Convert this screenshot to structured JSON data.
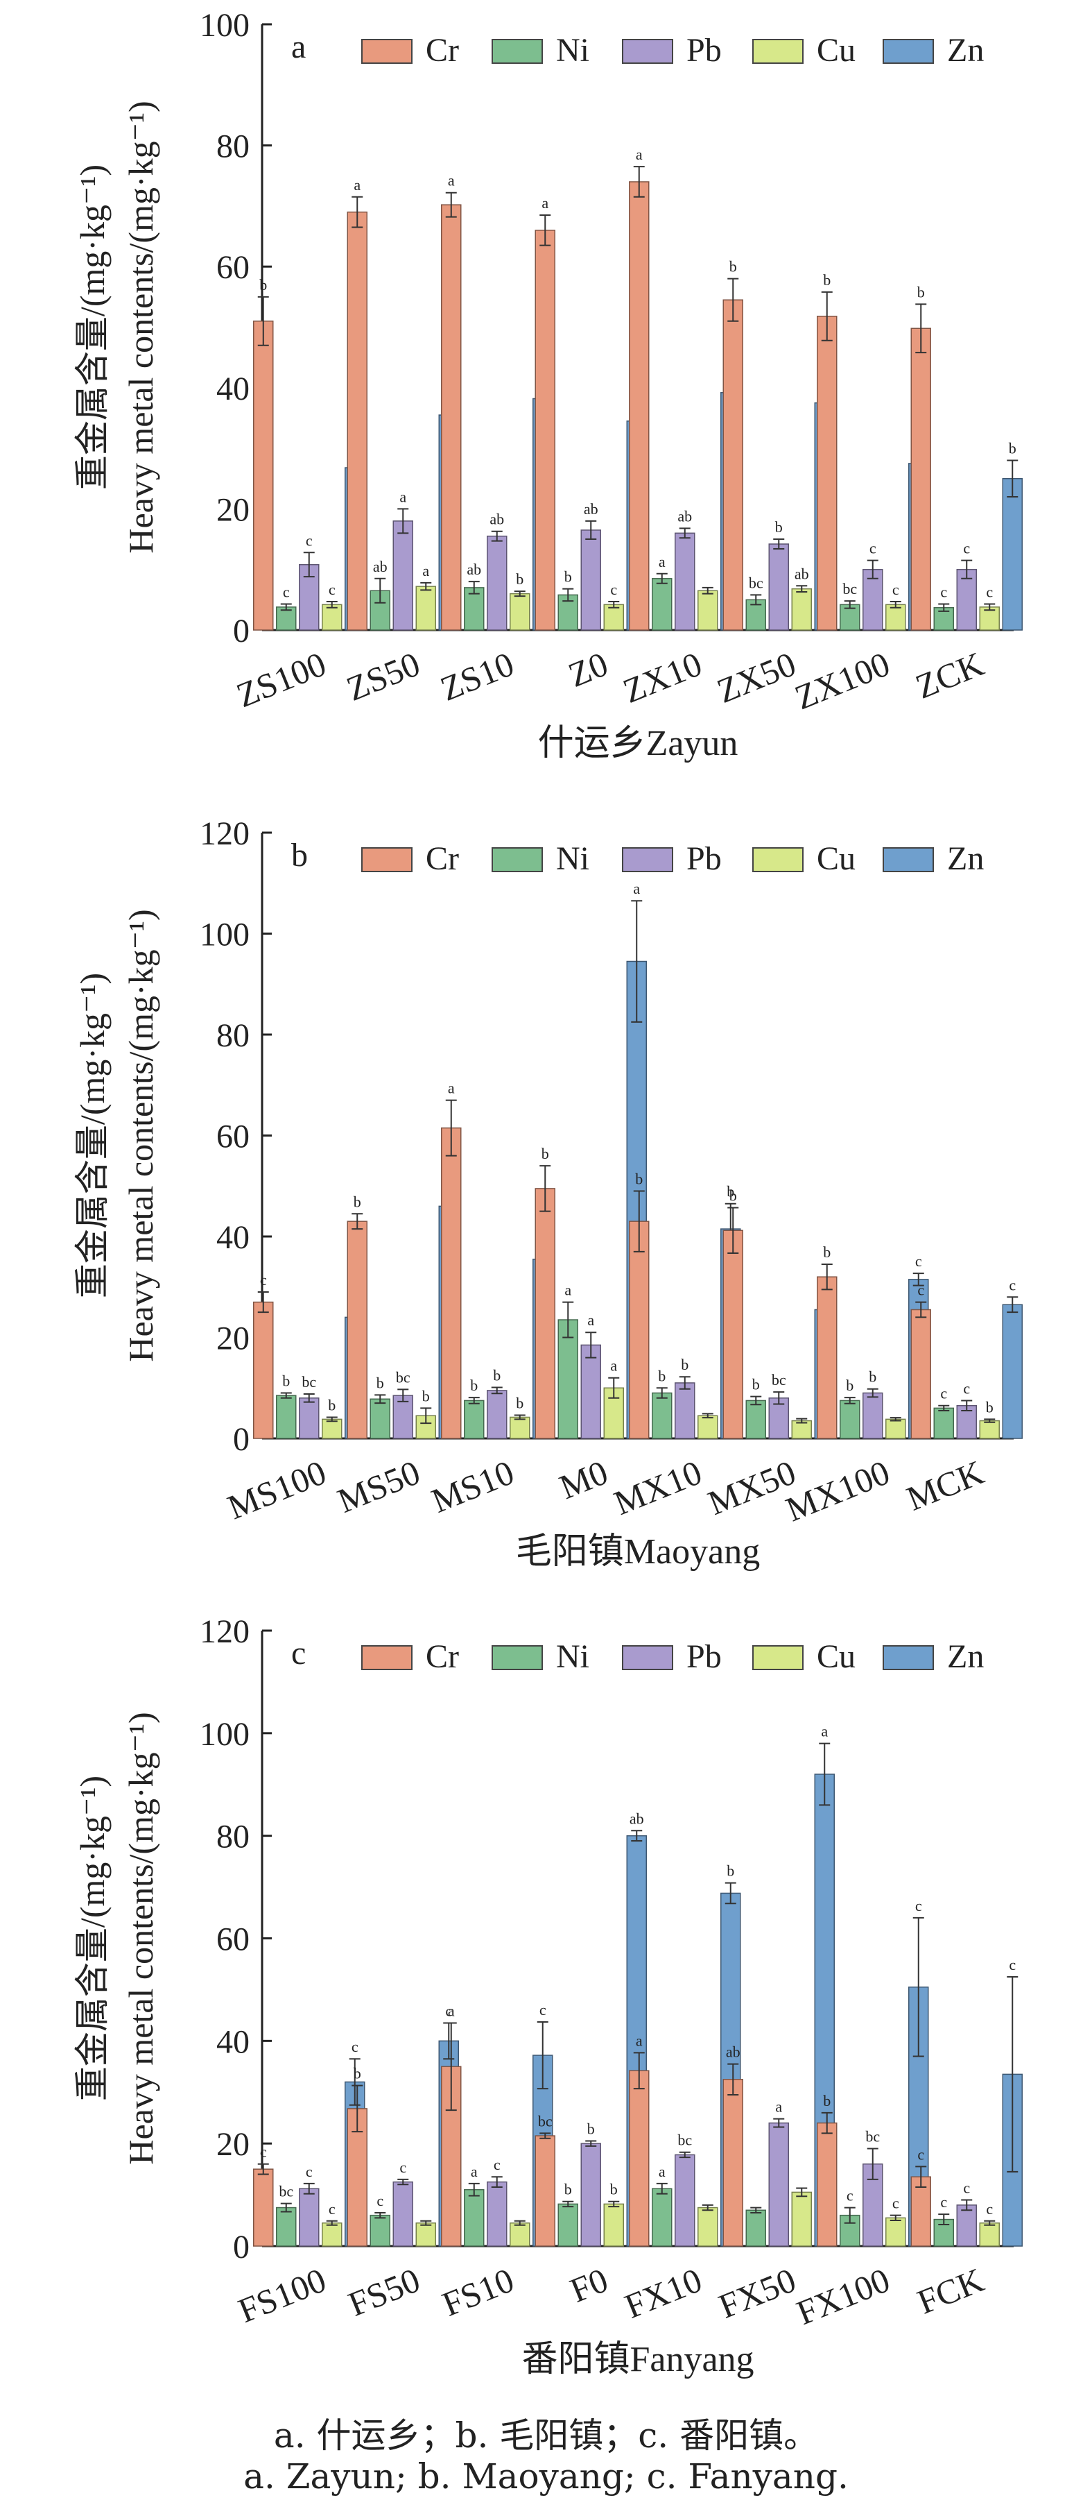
{
  "chart_data": [
    {
      "type": "bar",
      "panel_label": "a",
      "xlabel": "什运乡Zayun",
      "ylabel_cn": "重金属含量/(mg·kg⁻¹)",
      "ylabel_en": "Heavy metal contents/(mg·kg⁻¹)",
      "ylim": [
        0,
        100
      ],
      "yticks": [
        0,
        20,
        40,
        60,
        80,
        100
      ],
      "categories": [
        "ZS100",
        "ZS50",
        "ZS10",
        "Z0",
        "ZX10",
        "ZX50",
        "ZX100",
        "ZCK"
      ],
      "legend_position": "top",
      "series": [
        {
          "name": "Cr",
          "color": "#E89A7E",
          "values": [
            51,
            69,
            70.2,
            66,
            74,
            54.5,
            51.8,
            49.8
          ],
          "errors": [
            4,
            2.5,
            2,
            2.5,
            2.5,
            3.5,
            4,
            4
          ],
          "letters": [
            "b",
            "a",
            "a",
            "a",
            "a",
            "b",
            "b",
            "b"
          ]
        },
        {
          "name": "Ni",
          "color": "#7DBE8F",
          "values": [
            3.8,
            6.5,
            7,
            5.8,
            8.5,
            5,
            4.2,
            3.7
          ],
          "errors": [
            0.5,
            2,
            1,
            1,
            0.8,
            0.8,
            0.6,
            0.6
          ],
          "letters": [
            "c",
            "ab",
            "ab",
            "b",
            "a",
            "bc",
            "bc",
            "c"
          ]
        },
        {
          "name": "Pb",
          "color": "#A99BCE",
          "values": [
            10.8,
            18,
            15.5,
            16.5,
            16,
            14.2,
            10,
            10
          ],
          "errors": [
            2,
            2,
            0.8,
            1.5,
            0.8,
            0.8,
            1.5,
            1.5
          ],
          "letters": [
            "c",
            "a",
            "ab",
            "ab",
            "ab",
            "b",
            "c",
            "c"
          ]
        },
        {
          "name": "Cu",
          "color": "#D7E88A",
          "values": [
            4.2,
            7.2,
            6,
            4.2,
            6.5,
            6.8,
            4.2,
            3.8
          ],
          "errors": [
            0.5,
            0.6,
            0.4,
            0.5,
            0.5,
            0.5,
            0.5,
            0.5
          ],
          "letters": [
            "c",
            "a",
            "b",
            "c",
            "",
            "ab",
            "c",
            "c"
          ]
        },
        {
          "name": "Zn",
          "color": "#6F9FCD",
          "values": [
            26.8,
            35.5,
            38.2,
            34.5,
            39.2,
            37.5,
            27.5,
            25
          ],
          "errors": [
            2.5,
            3,
            1.5,
            2.5,
            1.5,
            4,
            2.5,
            3
          ],
          "letters": [
            "b",
            "a",
            "a",
            "a",
            "a",
            "a",
            "b",
            "b"
          ]
        }
      ]
    },
    {
      "type": "bar",
      "panel_label": "b",
      "xlabel": "毛阳镇Maoyang",
      "ylabel_cn": "重金属含量/(mg·kg⁻¹)",
      "ylabel_en": "Heavy metal contents/(mg·kg⁻¹)",
      "ylim": [
        0,
        120
      ],
      "yticks": [
        0,
        20,
        40,
        60,
        80,
        100,
        120
      ],
      "categories": [
        "MS100",
        "MS50",
        "MS10",
        "M0",
        "MX10",
        "MX50",
        "MX100",
        "MCK"
      ],
      "legend_position": "top",
      "series": [
        {
          "name": "Cr",
          "color": "#E89A7E",
          "values": [
            27,
            43,
            61.5,
            49.5,
            43,
            41.2,
            32,
            25.5
          ],
          "errors": [
            2,
            1.5,
            5.5,
            4.5,
            6,
            4.5,
            2.5,
            1.5
          ],
          "letters": [
            "c",
            "b",
            "a",
            "b",
            "b",
            "b",
            "b",
            "c"
          ]
        },
        {
          "name": "Ni",
          "color": "#7DBE8F",
          "values": [
            8.5,
            7.8,
            7.5,
            23.5,
            9,
            7.5,
            7.5,
            6
          ],
          "errors": [
            0.5,
            0.8,
            0.6,
            3.5,
            1,
            0.8,
            0.6,
            0.5
          ],
          "letters": [
            "b",
            "b",
            "b",
            "a",
            "b",
            "b",
            "b",
            "c"
          ]
        },
        {
          "name": "Pb",
          "color": "#A99BCE",
          "values": [
            8,
            8.5,
            9.5,
            18.5,
            11,
            8,
            9,
            6.5
          ],
          "errors": [
            0.8,
            1.2,
            0.6,
            2.5,
            1.2,
            1.2,
            0.8,
            1
          ],
          "letters": [
            "bc",
            "bc",
            "b",
            "a",
            "b",
            "bc",
            "b",
            "c"
          ]
        },
        {
          "name": "Cu",
          "color": "#D7E88A",
          "values": [
            3.8,
            4.5,
            4.2,
            10,
            4.5,
            3.5,
            3.8,
            3.5
          ],
          "errors": [
            0.4,
            1.5,
            0.4,
            2,
            0.4,
            0.4,
            0.3,
            0.3
          ],
          "letters": [
            "b",
            "b",
            "b",
            "a",
            "",
            "",
            "",
            "b"
          ]
        },
        {
          "name": "Zn",
          "color": "#6F9FCD",
          "values": [
            24,
            46,
            35.5,
            94.5,
            41.5,
            25.5,
            31.5,
            26.5
          ],
          "errors": [
            1,
            3.5,
            3.5,
            12,
            5,
            1,
            1.2,
            1.5
          ],
          "letters": [
            "c",
            "b",
            "b",
            "a",
            "b",
            "c",
            "c",
            "c"
          ]
        }
      ]
    },
    {
      "type": "bar",
      "panel_label": "c",
      "xlabel": "番阳镇Fanyang",
      "ylabel_cn": "重金属含量/(mg·kg⁻¹)",
      "ylabel_en": "Heavy metal contents/(mg·kg⁻¹)",
      "ylim": [
        0,
        120
      ],
      "yticks": [
        0,
        20,
        40,
        60,
        80,
        100,
        120
      ],
      "categories": [
        "FS100",
        "FS50",
        "FS10",
        "F0",
        "FX10",
        "FX50",
        "FX100",
        "FCK"
      ],
      "legend_position": "top",
      "series": [
        {
          "name": "Cr",
          "color": "#E89A7E",
          "values": [
            15,
            26.8,
            35,
            21.5,
            34.2,
            32.5,
            24,
            13.5
          ],
          "errors": [
            1,
            4.5,
            8.5,
            0.5,
            3.5,
            3,
            2,
            2
          ],
          "letters": [
            "c",
            "b",
            "a",
            "bc",
            "a",
            "ab",
            "b",
            "c"
          ]
        },
        {
          "name": "Ni",
          "color": "#7DBE8F",
          "values": [
            7.5,
            6,
            11,
            8.2,
            11.2,
            7,
            6,
            5.2
          ],
          "errors": [
            0.8,
            0.5,
            1.2,
            0.5,
            1,
            0.5,
            1.5,
            1
          ],
          "letters": [
            "bc",
            "c",
            "a",
            "b",
            "a",
            "",
            "c",
            "c"
          ]
        },
        {
          "name": "Pb",
          "color": "#A99BCE",
          "values": [
            11.2,
            12.5,
            12.5,
            20,
            17.8,
            24,
            16,
            8
          ],
          "errors": [
            1,
            0.5,
            1,
            0.5,
            0.5,
            0.8,
            3,
            1
          ],
          "letters": [
            "c",
            "c",
            "c",
            "b",
            "bc",
            "a",
            "bc",
            "c"
          ]
        },
        {
          "name": "Cu",
          "color": "#D7E88A",
          "values": [
            4.5,
            4.5,
            4.5,
            8.2,
            7.5,
            10.5,
            5.5,
            4.5
          ],
          "errors": [
            0.4,
            0.4,
            0.4,
            0.5,
            0.5,
            0.8,
            0.5,
            0.4
          ],
          "letters": [
            "c",
            "",
            "",
            "b",
            "",
            "",
            "c",
            "c"
          ]
        },
        {
          "name": "Zn",
          "color": "#6F9FCD",
          "values": [
            32,
            40,
            37.2,
            80,
            68.8,
            92,
            50.5,
            33.5
          ],
          "errors": [
            4.5,
            3.5,
            6.5,
            1,
            2,
            6,
            13.5,
            19
          ],
          "letters": [
            "c",
            "c",
            "c",
            "ab",
            "b",
            "a",
            "c",
            "c"
          ]
        }
      ]
    }
  ],
  "caption": {
    "line1": "a. 什运乡；b. 毛阳镇；c. 番阳镇。",
    "line2": "a. Zayun; b. Maoyang; c. Fanyang."
  }
}
